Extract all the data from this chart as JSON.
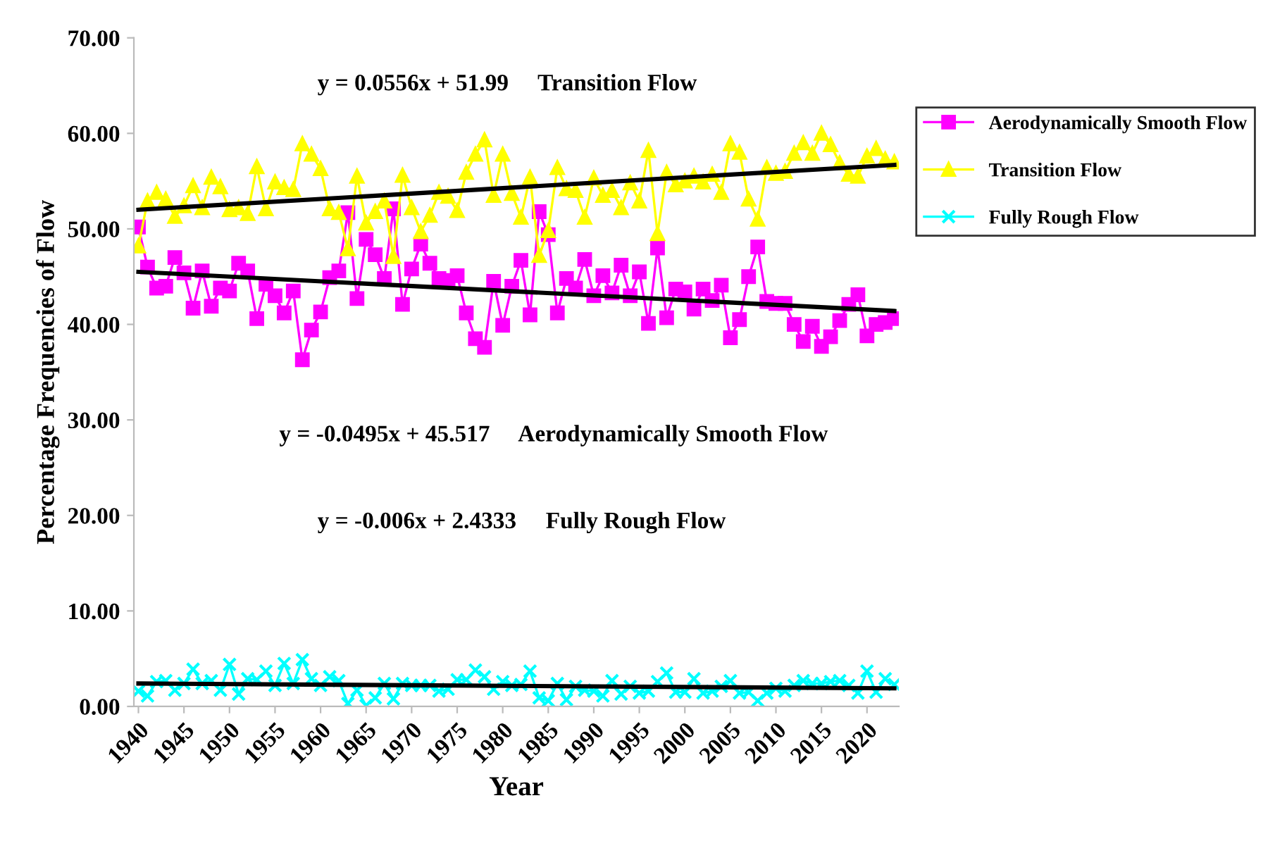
{
  "chart_data": {
    "type": "line",
    "xlabel": "Year",
    "ylabel": "Percentage Frequencies of Flow",
    "x": [
      1940,
      1941,
      1942,
      1943,
      1944,
      1945,
      1946,
      1947,
      1948,
      1949,
      1950,
      1951,
      1952,
      1953,
      1954,
      1955,
      1956,
      1957,
      1958,
      1959,
      1960,
      1961,
      1962,
      1963,
      1964,
      1965,
      1966,
      1967,
      1968,
      1969,
      1970,
      1971,
      1972,
      1973,
      1974,
      1975,
      1976,
      1977,
      1978,
      1979,
      1980,
      1981,
      1982,
      1983,
      1984,
      1985,
      1986,
      1987,
      1988,
      1989,
      1990,
      1991,
      1992,
      1993,
      1994,
      1995,
      1996,
      1997,
      1998,
      1999,
      2000,
      2001,
      2002,
      2003,
      2004,
      2005,
      2006,
      2007,
      2008,
      2009,
      2010,
      2011,
      2012,
      2013,
      2014,
      2015,
      2016,
      2017,
      2018,
      2019,
      2020,
      2021,
      2022,
      2023
    ],
    "xlim": [
      1939.5,
      2023.5
    ],
    "xticks": [
      {
        "value": 1940,
        "label": "1940"
      },
      {
        "value": 1945,
        "label": "1945"
      },
      {
        "value": 1950,
        "label": "1950"
      },
      {
        "value": 1955,
        "label": "1955"
      },
      {
        "value": 1960,
        "label": "1960"
      },
      {
        "value": 1965,
        "label": "1965"
      },
      {
        "value": 1970,
        "label": "1970"
      },
      {
        "value": 1975,
        "label": "1975"
      },
      {
        "value": 1980,
        "label": "1980"
      },
      {
        "value": 1985,
        "label": "1985"
      },
      {
        "value": 1990,
        "label": "1990"
      },
      {
        "value": 1995,
        "label": "1995"
      },
      {
        "value": 2000,
        "label": "2000"
      },
      {
        "value": 2005,
        "label": "2005"
      },
      {
        "value": 2010,
        "label": "2010"
      },
      {
        "value": 2015,
        "label": "2015"
      },
      {
        "value": 2020,
        "label": "2020"
      }
    ],
    "ylim": [
      0,
      70
    ],
    "yticks": [
      {
        "value": 0,
        "label": "0.00"
      },
      {
        "value": 10,
        "label": "10.00"
      },
      {
        "value": 20,
        "label": "20.00"
      },
      {
        "value": 30,
        "label": "30.00"
      },
      {
        "value": 40,
        "label": "40.00"
      },
      {
        "value": 50,
        "label": "50.00"
      },
      {
        "value": 60,
        "label": "60.00"
      },
      {
        "value": 70,
        "label": "70.00"
      }
    ],
    "grid": false,
    "legend": "right",
    "line_style": "solid",
    "series": [
      {
        "name": "Aerodynamically Smooth Flow",
        "color": "#ff00ff",
        "marker": "square",
        "values": [
          50.2,
          46.0,
          43.8,
          44.0,
          47.0,
          45.4,
          41.7,
          45.6,
          41.9,
          43.8,
          43.5,
          46.4,
          45.6,
          40.6,
          44.2,
          43.0,
          41.2,
          43.5,
          36.3,
          39.4,
          41.3,
          44.9,
          45.6,
          51.7,
          42.7,
          48.9,
          47.3,
          44.8,
          52.1,
          42.1,
          45.8,
          48.4,
          46.4,
          44.8,
          44.6,
          45.1,
          41.2,
          38.5,
          37.6,
          44.5,
          39.9,
          44.0,
          46.7,
          41.0,
          51.8,
          49.4,
          41.2,
          44.8,
          43.8,
          46.8,
          43.0,
          45.1,
          43.3,
          46.2,
          43.0,
          45.5,
          40.1,
          48.0,
          40.7,
          43.7,
          43.4,
          41.6,
          43.7,
          42.5,
          44.1,
          38.6,
          40.5,
          45.0,
          48.1,
          42.4,
          42.2,
          42.2,
          40.0,
          38.2,
          39.8,
          37.7,
          38.7,
          40.4,
          42.1,
          43.1,
          38.8,
          40.0,
          40.2,
          40.6
        ]
      },
      {
        "name": "Transition Flow",
        "color": "#ffff00",
        "marker": "triangle",
        "values": [
          48.2,
          52.9,
          53.8,
          53.1,
          51.3,
          52.4,
          54.5,
          52.2,
          55.4,
          54.4,
          52.0,
          52.2,
          51.6,
          56.5,
          52.1,
          54.9,
          54.3,
          54.1,
          58.9,
          57.8,
          56.3,
          52.1,
          51.7,
          47.9,
          55.5,
          50.6,
          51.8,
          52.9,
          47.1,
          55.6,
          52.2,
          49.7,
          51.4,
          53.8,
          53.4,
          51.9,
          55.9,
          57.8,
          59.3,
          53.5,
          57.8,
          53.7,
          51.2,
          55.4,
          47.2,
          49.8,
          56.4,
          54.2,
          54.0,
          51.2,
          55.3,
          53.5,
          54.0,
          52.2,
          54.8,
          52.9,
          58.2,
          49.5,
          55.9,
          54.6,
          55.0,
          55.5,
          54.9,
          55.7,
          53.8,
          58.9,
          58.0,
          53.1,
          51.0,
          56.4,
          55.8,
          56.0,
          57.9,
          59.0,
          57.9,
          60.0,
          58.8,
          56.9,
          55.7,
          55.5,
          57.6,
          58.4,
          57.3,
          57.0
        ]
      },
      {
        "name": "Fully Rough Flow",
        "color": "#00ffff",
        "marker": "cross",
        "values": [
          1.6,
          1.1,
          2.6,
          2.7,
          1.7,
          2.4,
          3.9,
          2.4,
          2.7,
          1.7,
          4.4,
          1.3,
          2.9,
          2.8,
          3.7,
          2.2,
          4.5,
          2.4,
          4.9,
          2.9,
          2.2,
          3.1,
          2.7,
          0.3,
          1.7,
          0.1,
          0.9,
          2.4,
          0.8,
          2.4,
          2.2,
          2.2,
          2.2,
          1.6,
          1.8,
          2.8,
          2.8,
          3.8,
          3.1,
          1.8,
          2.6,
          2.2,
          2.3,
          3.7,
          0.9,
          0.6,
          2.4,
          0.7,
          2.1,
          1.7,
          1.6,
          1.1,
          2.7,
          1.3,
          2.1,
          1.4,
          1.6,
          2.6,
          3.5,
          1.5,
          1.5,
          2.9,
          1.4,
          1.6,
          2.1,
          2.7,
          1.4,
          1.5,
          0.6,
          1.4,
          1.9,
          1.6,
          2.2,
          2.7,
          2.4,
          2.4,
          2.6,
          2.7,
          2.2,
          1.4,
          3.7,
          1.5,
          2.9,
          2.3
        ]
      },
      {
        "color": "#000000",
        "marker": "none",
        "values": [
          45.5,
          null,
          null,
          null,
          null,
          null,
          null,
          null,
          null,
          null,
          null,
          null,
          null,
          null,
          null,
          null,
          null,
          null,
          null,
          null,
          null,
          null,
          null,
          null,
          null,
          null,
          null,
          null,
          null,
          null,
          null,
          null,
          null,
          null,
          null,
          null,
          null,
          null,
          null,
          null,
          null,
          null,
          null,
          null,
          null,
          null,
          null,
          null,
          null,
          null,
          null,
          null,
          null,
          null,
          null,
          null,
          null,
          null,
          null,
          null,
          null,
          null,
          null,
          null,
          null,
          null,
          null,
          null,
          null,
          null,
          null,
          null,
          null,
          null,
          null,
          null,
          null,
          null,
          null,
          null,
          null,
          null,
          null,
          41.4
        ]
      },
      {
        "color": "#000000",
        "marker": "none",
        "values": [
          52.0,
          null,
          null,
          null,
          null,
          null,
          null,
          null,
          null,
          null,
          null,
          null,
          null,
          null,
          null,
          null,
          null,
          null,
          null,
          null,
          null,
          null,
          null,
          null,
          null,
          null,
          null,
          null,
          null,
          null,
          null,
          null,
          null,
          null,
          null,
          null,
          null,
          null,
          null,
          null,
          null,
          null,
          null,
          null,
          null,
          null,
          null,
          null,
          null,
          null,
          null,
          null,
          null,
          null,
          null,
          null,
          null,
          null,
          null,
          null,
          null,
          null,
          null,
          null,
          null,
          null,
          null,
          null,
          null,
          null,
          null,
          null,
          null,
          null,
          null,
          null,
          null,
          null,
          null,
          null,
          null,
          null,
          null,
          56.7
        ]
      },
      {
        "color": "#000000",
        "marker": "none",
        "values": [
          2.4,
          null,
          null,
          null,
          null,
          null,
          null,
          null,
          null,
          null,
          null,
          null,
          null,
          null,
          null,
          null,
          null,
          null,
          null,
          null,
          null,
          null,
          null,
          null,
          null,
          null,
          null,
          null,
          null,
          null,
          null,
          null,
          null,
          null,
          null,
          null,
          null,
          null,
          null,
          null,
          null,
          null,
          null,
          null,
          null,
          null,
          null,
          null,
          null,
          null,
          null,
          null,
          null,
          null,
          null,
          null,
          null,
          null,
          null,
          null,
          null,
          null,
          null,
          null,
          null,
          null,
          null,
          null,
          null,
          null,
          null,
          null,
          null,
          null,
          null,
          null,
          null,
          null,
          null,
          null,
          null,
          null,
          null,
          1.9
        ]
      }
    ],
    "annotations": [
      "y = 0.0556x + 51.99     Transition Flow",
      "y = -0.0495x + 45.517     Aerodynamically Smooth Flow",
      "y = -0.006x + 2.4333     Fully Rough Flow"
    ]
  }
}
